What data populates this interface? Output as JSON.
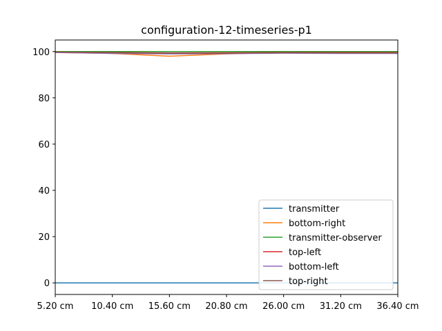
{
  "chart_data": {
    "type": "line",
    "title": "configuration-12-timeseries-p1",
    "xlabel": "",
    "ylabel": "",
    "x": [
      "5.20 cm",
      "10.40 cm",
      "15.60 cm",
      "20.80 cm",
      "26.00 cm",
      "31.20 cm",
      "36.40 cm"
    ],
    "xlim": [
      0,
      6
    ],
    "ylim": [
      -5,
      105
    ],
    "yticks": [
      0,
      20,
      40,
      60,
      80,
      100
    ],
    "grid": false,
    "legend_position": "lower-right",
    "series": [
      {
        "name": "transmitter",
        "color": "#1f77b4",
        "values": [
          0,
          0,
          0,
          0,
          0,
          0,
          0
        ]
      },
      {
        "name": "bottom-right",
        "color": "#ff7f0e",
        "values": [
          99.6,
          99.2,
          98.0,
          99.0,
          99.6,
          99.6,
          99.6
        ]
      },
      {
        "name": "transmitter-observer",
        "color": "#2ca02c",
        "values": [
          100,
          100,
          100,
          100,
          100,
          100,
          100
        ]
      },
      {
        "name": "top-left",
        "color": "#d62728",
        "values": [
          99.8,
          99.6,
          99.4,
          99.5,
          99.6,
          99.6,
          99.6
        ]
      },
      {
        "name": "bottom-left",
        "color": "#9467bd",
        "values": [
          99.6,
          99.2,
          99.0,
          99.1,
          99.3,
          99.2,
          99.2
        ]
      },
      {
        "name": "top-right",
        "color": "#8c564b",
        "values": [
          99.8,
          99.5,
          99.3,
          99.3,
          99.5,
          99.4,
          99.4
        ]
      }
    ]
  }
}
